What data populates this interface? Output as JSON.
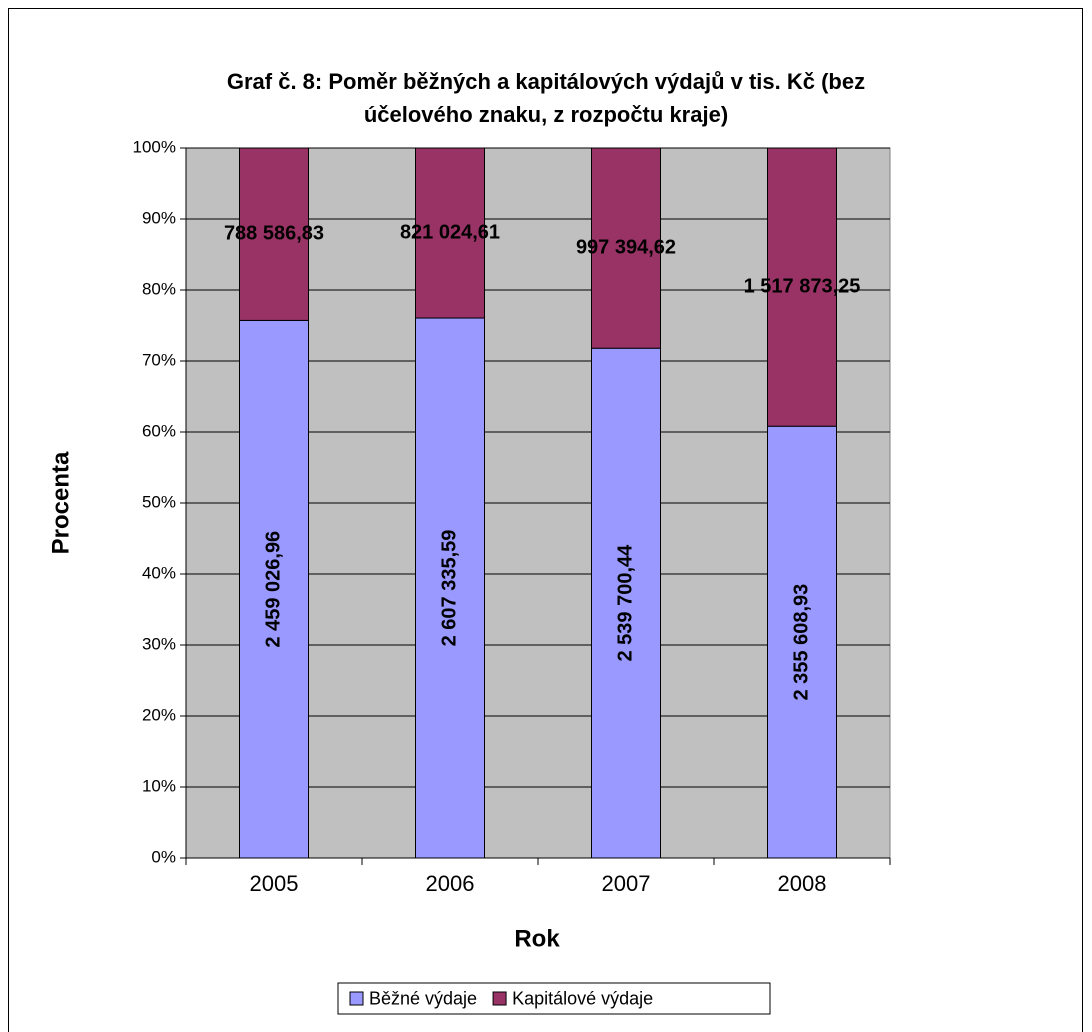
{
  "chart_data": {
    "type": "bar",
    "stacked": "percent",
    "title": [
      "Graf č. 8: Poměr běžných a kapitálových výdajů v tis. Kč (bez",
      "účelového znaku, z rozpočtu kraje)"
    ],
    "xlabel": "Rok",
    "ylabel": "Procenta",
    "categories": [
      "2005",
      "2006",
      "2007",
      "2008"
    ],
    "series": [
      {
        "name": "Běžné výdaje",
        "color": "#9999ff",
        "values": [
          2459026.96,
          2607335.59,
          2539700.44,
          2355608.93
        ],
        "value_labels": [
          "2 459 026,96",
          "2 607 335,59",
          "2 539 700,44",
          "2 355 608,93"
        ]
      },
      {
        "name": "Kapitálové výdaje",
        "color": "#993366",
        "values": [
          788586.83,
          821024.61,
          997394.62,
          1517873.25
        ],
        "value_labels": [
          "788 586,83",
          "821 024,61",
          "997 394,62",
          "1 517 873,25"
        ]
      }
    ],
    "ylim": [
      0,
      100
    ],
    "yticks": [
      {
        "value": 0,
        "label": "0%"
      },
      {
        "value": 10,
        "label": "10%"
      },
      {
        "value": 20,
        "label": "20%"
      },
      {
        "value": 30,
        "label": "30%"
      },
      {
        "value": 40,
        "label": "40%"
      },
      {
        "value": 50,
        "label": "50%"
      },
      {
        "value": 60,
        "label": "60%"
      },
      {
        "value": 70,
        "label": "70%"
      },
      {
        "value": 80,
        "label": "80%"
      },
      {
        "value": 90,
        "label": "90%"
      },
      {
        "value": 100,
        "label": "100%"
      }
    ],
    "grid": true,
    "legend": "bottom"
  }
}
